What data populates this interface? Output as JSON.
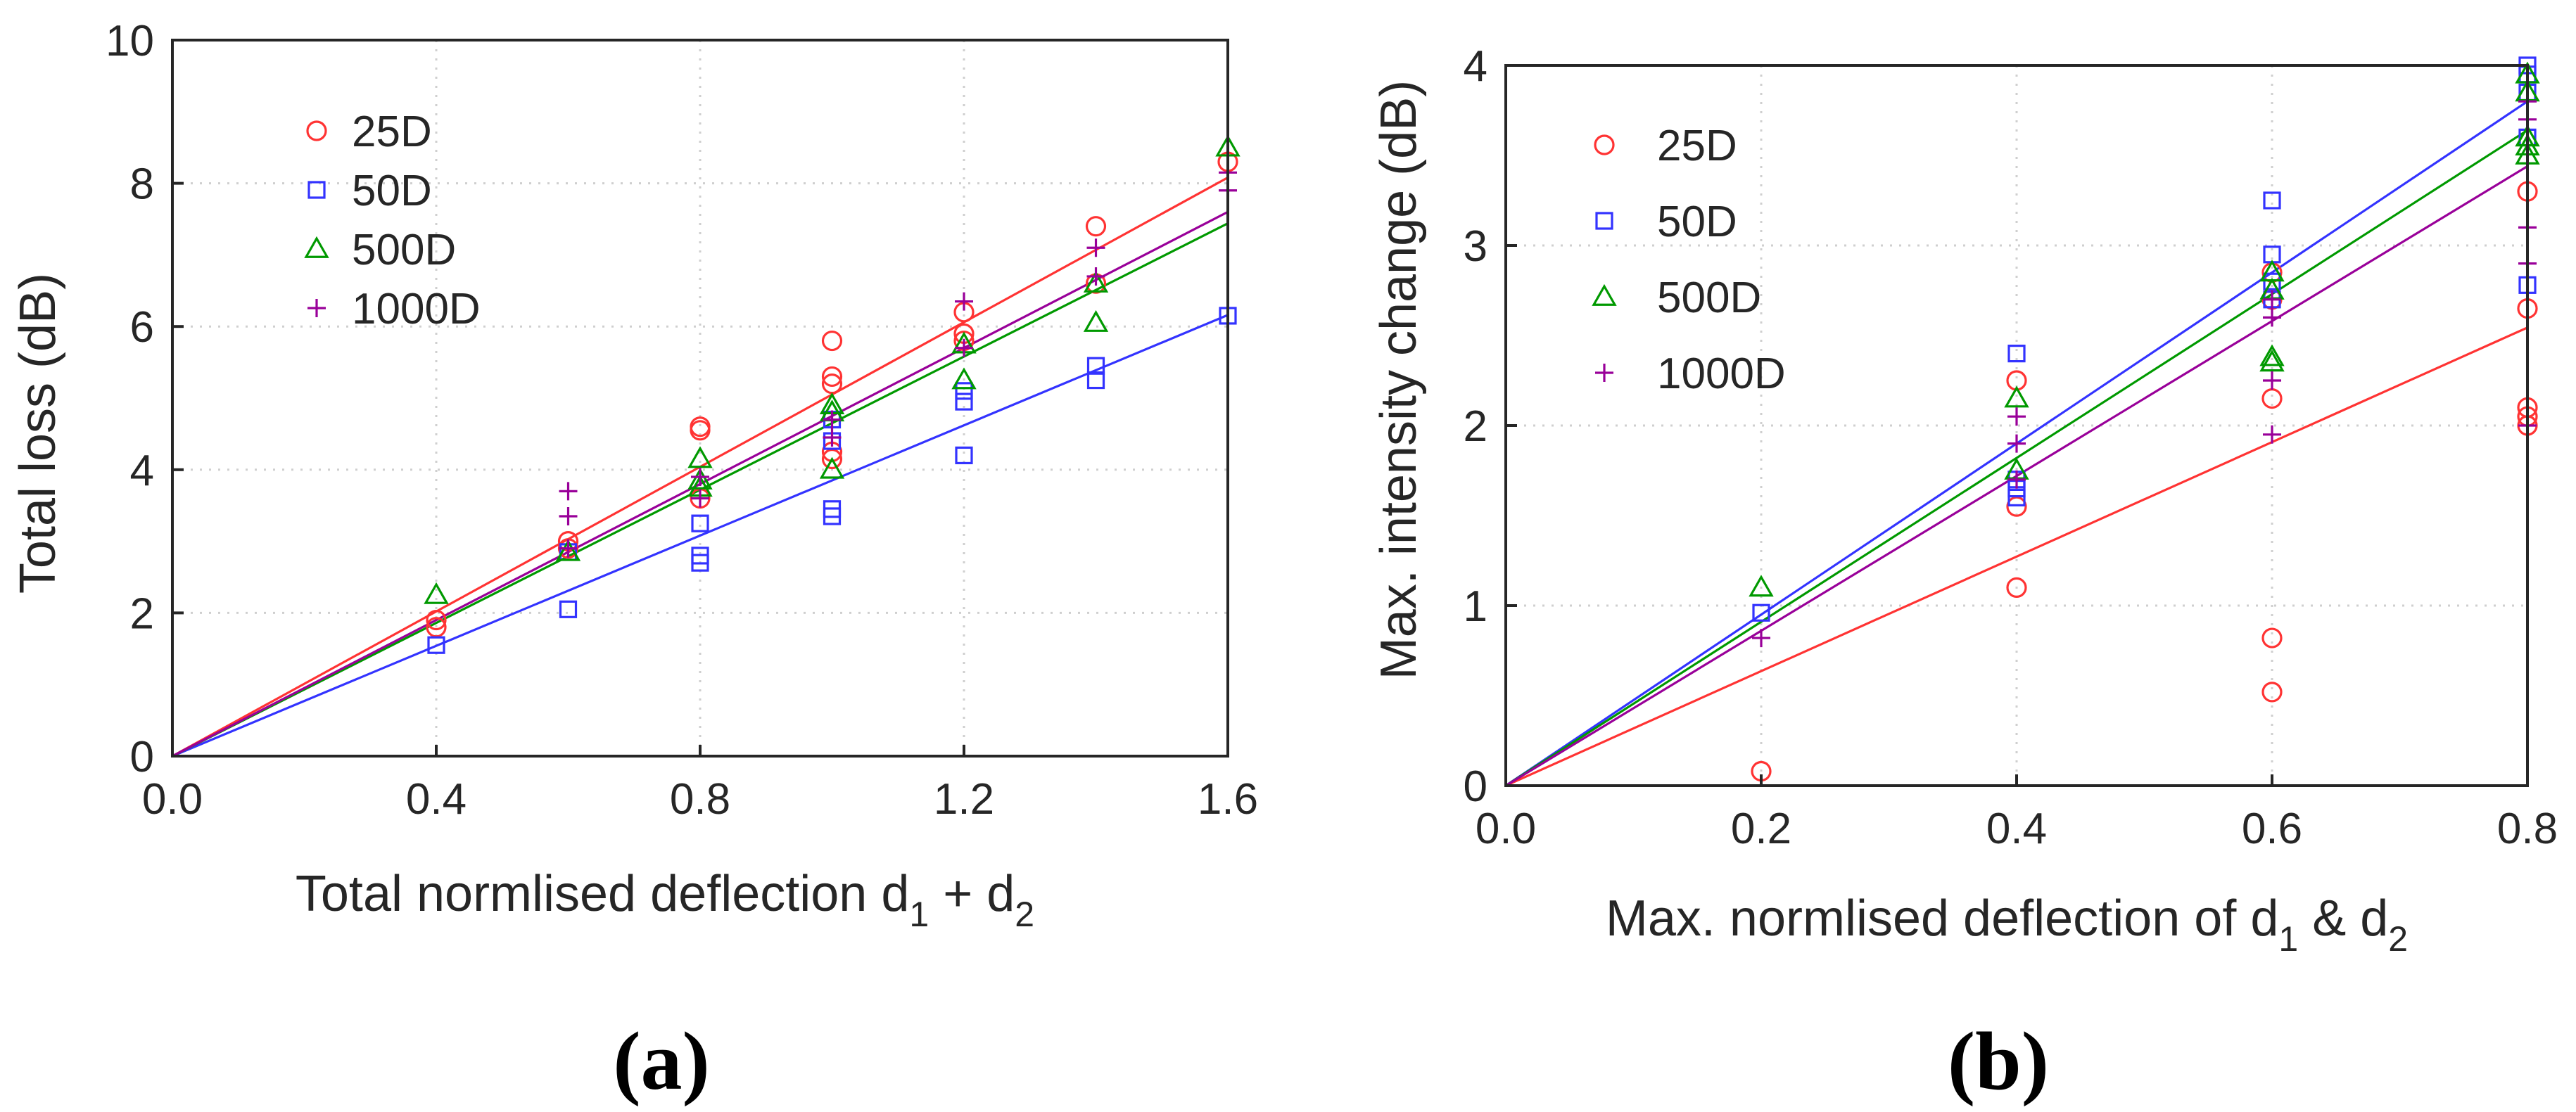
{
  "colors": {
    "25D": "#ff3333",
    "50D": "#3333ff",
    "500D": "#009900",
    "1000D": "#990099"
  },
  "chart_data": [
    {
      "type": "scatter",
      "panel_label": "(a)",
      "xlabel": "Total normlised deflection d",
      "xlabel_sub1": "1",
      "xlabel_mid": " + d",
      "xlabel_sub2": "2",
      "ylabel": "Total loss (dB)",
      "xlim": [
        0,
        1.6
      ],
      "ylim": [
        0,
        10
      ],
      "xticks": [
        0,
        0.4,
        0.8,
        1.2,
        1.6
      ],
      "xtick_labels": [
        "0.0",
        "0.4",
        "0.8",
        "1.2",
        "1.6"
      ],
      "yticks": [
        0,
        2,
        4,
        6,
        8,
        10
      ],
      "ytick_labels": [
        "0",
        "2",
        "4",
        "6",
        "8",
        "10"
      ],
      "grid": true,
      "legend_position": "top-left",
      "series": [
        {
          "name": "25D",
          "marker": "circle",
          "fit_slope": 5.05,
          "points": [
            [
              0.4,
              1.8
            ],
            [
              0.4,
              1.9
            ],
            [
              0.6,
              2.9
            ],
            [
              0.6,
              3.0
            ],
            [
              0.8,
              3.6
            ],
            [
              0.8,
              4.55
            ],
            [
              0.8,
              4.6
            ],
            [
              1.0,
              4.15
            ],
            [
              1.0,
              4.25
            ],
            [
              1.0,
              5.2
            ],
            [
              1.0,
              5.3
            ],
            [
              1.0,
              5.8
            ],
            [
              1.2,
              5.8
            ],
            [
              1.2,
              5.9
            ],
            [
              1.2,
              6.2
            ],
            [
              1.4,
              6.6
            ],
            [
              1.4,
              7.4
            ],
            [
              1.6,
              8.3
            ]
          ]
        },
        {
          "name": "50D",
          "marker": "square",
          "fit_slope": 3.85,
          "points": [
            [
              0.4,
              1.55
            ],
            [
              0.6,
              2.05
            ],
            [
              0.6,
              2.85
            ],
            [
              0.8,
              2.7
            ],
            [
              0.8,
              2.8
            ],
            [
              0.8,
              3.25
            ],
            [
              1.0,
              3.35
            ],
            [
              1.0,
              3.45
            ],
            [
              1.0,
              4.4
            ],
            [
              1.0,
              4.7
            ],
            [
              1.2,
              4.2
            ],
            [
              1.2,
              4.95
            ],
            [
              1.2,
              5.1
            ],
            [
              1.4,
              5.25
            ],
            [
              1.4,
              5.45
            ],
            [
              1.6,
              6.15
            ]
          ]
        },
        {
          "name": "500D",
          "marker": "triangle",
          "fit_slope": 4.65,
          "points": [
            [
              0.4,
              2.25
            ],
            [
              0.6,
              2.85
            ],
            [
              0.8,
              3.75
            ],
            [
              0.8,
              3.85
            ],
            [
              0.8,
              4.15
            ],
            [
              1.0,
              4.0
            ],
            [
              1.0,
              4.8
            ],
            [
              1.0,
              4.9
            ],
            [
              1.2,
              5.25
            ],
            [
              1.2,
              5.75
            ],
            [
              1.4,
              6.05
            ],
            [
              1.4,
              6.6
            ],
            [
              1.6,
              8.5
            ]
          ]
        },
        {
          "name": "1000D",
          "marker": "plus",
          "fit_slope": 4.75,
          "points": [
            [
              0.6,
              2.9
            ],
            [
              0.6,
              3.35
            ],
            [
              0.6,
              3.7
            ],
            [
              0.8,
              3.6
            ],
            [
              0.8,
              3.9
            ],
            [
              1.0,
              4.45
            ],
            [
              1.0,
              4.7
            ],
            [
              1.2,
              5.7
            ],
            [
              1.2,
              6.35
            ],
            [
              1.4,
              6.7
            ],
            [
              1.4,
              7.1
            ],
            [
              1.6,
              7.9
            ],
            [
              1.6,
              8.15
            ]
          ]
        }
      ]
    },
    {
      "type": "scatter",
      "panel_label": "(b)",
      "xlabel": "Max. normlised deflection of d",
      "xlabel_sub1": "1",
      "xlabel_mid": " & d",
      "xlabel_sub2": "2",
      "ylabel": "Max. intensity change (dB)",
      "xlim": [
        0,
        0.8
      ],
      "ylim": [
        0,
        4
      ],
      "xticks": [
        0,
        0.2,
        0.4,
        0.6,
        0.8
      ],
      "xtick_labels": [
        "0.0",
        "0.2",
        "0.4",
        "0.6",
        "0.8"
      ],
      "yticks": [
        0,
        1,
        2,
        3,
        4
      ],
      "ytick_labels": [
        "0",
        "1",
        "2",
        "3",
        "4"
      ],
      "grid": true,
      "legend_position": "top-left",
      "series": [
        {
          "name": "25D",
          "marker": "circle",
          "fit_slope": 3.18,
          "points": [
            [
              0.2,
              0.08
            ],
            [
              0.4,
              1.1
            ],
            [
              0.4,
              1.55
            ],
            [
              0.4,
              2.25
            ],
            [
              0.6,
              0.52
            ],
            [
              0.6,
              0.82
            ],
            [
              0.6,
              2.15
            ],
            [
              0.6,
              2.7
            ],
            [
              0.6,
              2.85
            ],
            [
              0.8,
              2.0
            ],
            [
              0.8,
              2.05
            ],
            [
              0.8,
              2.1
            ],
            [
              0.8,
              2.65
            ],
            [
              0.8,
              3.3
            ]
          ]
        },
        {
          "name": "50D",
          "marker": "square",
          "fit_slope": 4.75,
          "points": [
            [
              0.2,
              0.96
            ],
            [
              0.4,
              1.6
            ],
            [
              0.4,
              1.65
            ],
            [
              0.4,
              1.7
            ],
            [
              0.4,
              2.4
            ],
            [
              0.6,
              2.7
            ],
            [
              0.6,
              2.8
            ],
            [
              0.6,
              2.95
            ],
            [
              0.6,
              3.25
            ],
            [
              0.8,
              2.78
            ],
            [
              0.8,
              3.6
            ],
            [
              0.8,
              3.85
            ],
            [
              0.8,
              3.95
            ],
            [
              0.8,
              4.0
            ]
          ]
        },
        {
          "name": "500D",
          "marker": "triangle",
          "fit_slope": 4.55,
          "points": [
            [
              0.2,
              1.1
            ],
            [
              0.4,
              1.75
            ],
            [
              0.4,
              2.15
            ],
            [
              0.6,
              2.35
            ],
            [
              0.6,
              2.38
            ],
            [
              0.6,
              2.75
            ],
            [
              0.6,
              2.85
            ],
            [
              0.8,
              3.5
            ],
            [
              0.8,
              3.55
            ],
            [
              0.8,
              3.6
            ],
            [
              0.8,
              3.85
            ],
            [
              0.8,
              3.95
            ]
          ]
        },
        {
          "name": "1000D",
          "marker": "plus",
          "fit_slope": 4.3,
          "points": [
            [
              0.2,
              0.82
            ],
            [
              0.4,
              1.7
            ],
            [
              0.4,
              1.9
            ],
            [
              0.4,
              2.05
            ],
            [
              0.6,
              1.95
            ],
            [
              0.6,
              2.25
            ],
            [
              0.6,
              2.6
            ],
            [
              0.6,
              2.7
            ],
            [
              0.8,
              2.0
            ],
            [
              0.8,
              2.9
            ],
            [
              0.8,
              3.1
            ],
            [
              0.8,
              3.7
            ],
            [
              0.8,
              3.8
            ]
          ]
        }
      ]
    }
  ]
}
